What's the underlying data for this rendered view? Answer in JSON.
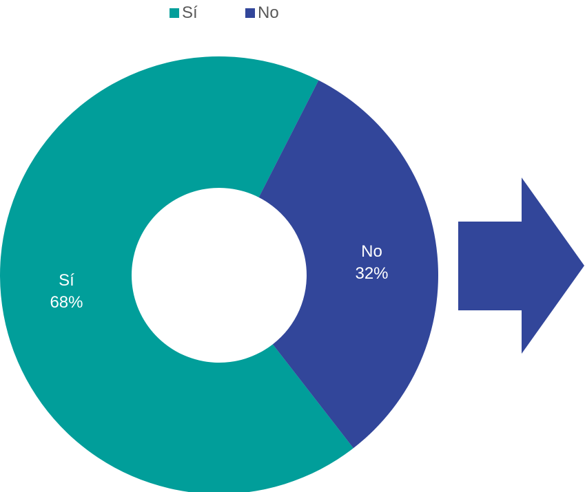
{
  "chart_data": {
    "type": "pie",
    "variant": "donut",
    "categories": [
      "Sí",
      "No"
    ],
    "values": [
      68,
      32
    ],
    "data_labels": [
      {
        "category": "Sí",
        "percent": "68%"
      },
      {
        "category": "No",
        "percent": "32%"
      }
    ],
    "colors": [
      "#019E9A",
      "#32469A"
    ],
    "legend": {
      "position": "top",
      "entries": [
        "Sí",
        "No"
      ]
    },
    "title": ""
  },
  "decor": {
    "arrow_icon": "right-arrow-icon",
    "arrow_color": "#32469A"
  }
}
